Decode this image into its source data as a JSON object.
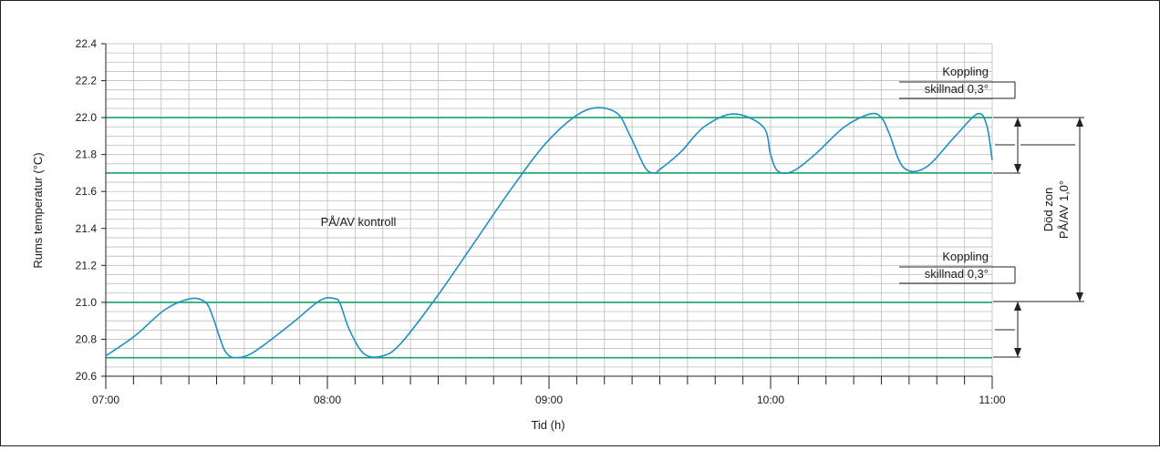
{
  "colors": {
    "curve": "#1f8fc4",
    "threshold": "#1aa367",
    "grid": "#bdbdbd",
    "axis": "#222222",
    "text": "#1a1a1a"
  },
  "annotations": {
    "control_label": "PÅ/AV kontroll",
    "hysteresis_upper": [
      "Koppling",
      "skillnad 0,3°"
    ],
    "hysteresis_lower": [
      "Koppling",
      "skillnad 0,3°"
    ],
    "dead_zone": [
      "Död zon",
      "PÅ/AV 1,0°"
    ]
  },
  "chart_data": {
    "type": "line",
    "title": "",
    "xlabel": "Tid (h)",
    "ylabel": "Rums temperatur (°C)",
    "xlim": [
      0,
      240
    ],
    "ylim": [
      20.6,
      22.4
    ],
    "x_ticks": [
      0,
      60,
      120,
      180,
      240
    ],
    "x_tick_labels": [
      "07:00",
      "08:00",
      "09:00",
      "10:00",
      "11:00"
    ],
    "y_ticks": [
      20.6,
      20.8,
      21.0,
      21.2,
      21.4,
      21.6,
      21.8,
      22.0,
      22.2,
      22.4
    ],
    "y_tick_labels": [
      "20.6",
      "20.8",
      "21.0",
      "21.2",
      "21.4",
      "21.6",
      "21.8",
      "22.0",
      "22.2",
      "22.4"
    ],
    "grid": true,
    "thresholds": [
      20.7,
      21.0,
      21.7,
      22.0
    ],
    "series": [
      {
        "x": [
          0,
          8,
          16,
          23,
          27,
          29,
          31,
          32.5,
          35,
          40,
          50,
          58,
          62,
          63.5,
          66,
          70,
          75,
          80,
          90,
          100,
          110,
          120,
          130,
          138,
          142,
          146,
          148.5,
          150,
          152,
          156,
          162,
          170,
          178,
          180,
          182,
          186,
          192,
          200,
          207,
          210,
          212,
          216,
          222,
          230,
          236,
          238.5,
          240
        ],
        "y": [
          20.71,
          20.82,
          20.96,
          21.02,
          21.0,
          20.92,
          20.8,
          20.73,
          20.7,
          20.73,
          20.88,
          21.01,
          21.02,
          20.99,
          20.85,
          20.72,
          20.71,
          20.78,
          21.04,
          21.33,
          21.62,
          21.88,
          22.04,
          22.03,
          21.9,
          21.73,
          21.7,
          21.72,
          21.75,
          21.82,
          21.95,
          22.02,
          21.95,
          21.8,
          21.71,
          21.71,
          21.8,
          21.95,
          22.02,
          22.0,
          21.92,
          21.73,
          21.73,
          21.9,
          22.02,
          21.96,
          21.77
        ]
      }
    ]
  }
}
